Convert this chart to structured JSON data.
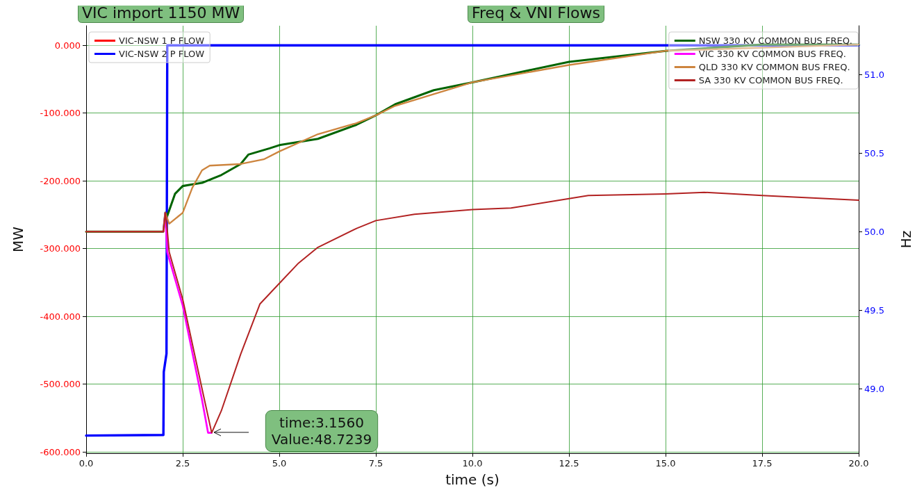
{
  "chart_data": {
    "type": "line",
    "title": "Freq & VNI Flows",
    "subtitle": "VIC import 1150 MW",
    "xlabel": "time (s)",
    "ylabel": "MW",
    "y2label": "Hz",
    "xlim": [
      0,
      20
    ],
    "xticks": [
      {
        "value": 0,
        "label": "0.0"
      },
      {
        "value": 2.5,
        "label": "2.5"
      },
      {
        "value": 5,
        "label": "5.0"
      },
      {
        "value": 7.5,
        "label": "7.5"
      },
      {
        "value": 10,
        "label": "10.0"
      },
      {
        "value": 12.5,
        "label": "12.5"
      },
      {
        "value": 15,
        "label": "15.0"
      },
      {
        "value": 17.5,
        "label": "17.5"
      },
      {
        "value": 20,
        "label": "20.0"
      }
    ],
    "ylim": [
      -602,
      29
    ],
    "yticks": [
      {
        "value": -600,
        "label": "-600.000"
      },
      {
        "value": -500,
        "label": "-500.000"
      },
      {
        "value": -400,
        "label": "-400.000"
      },
      {
        "value": -300,
        "label": "-300.000"
      },
      {
        "value": -200,
        "label": "-200.000"
      },
      {
        "value": -100,
        "label": "-100.000"
      },
      {
        "value": 0,
        "label": "0.000"
      }
    ],
    "y2lim": [
      48.59,
      51.31
    ],
    "y2ticks": [
      {
        "value": 49,
        "label": "49.0"
      },
      {
        "value": 49.5,
        "label": "49.5"
      },
      {
        "value": 50,
        "label": "50.0"
      },
      {
        "value": 50.5,
        "label": "50.5"
      },
      {
        "value": 51,
        "label": "51.0"
      }
    ],
    "grid": true,
    "legend": "top left",
    "series": [
      {
        "name": "VIC-NSW 1 P FLOW",
        "color": "#ff0000"
      },
      {
        "name": "VIC-NSW 2 P FLOW",
        "color": "#0000ff",
        "x": [
          0,
          2.0,
          2.01,
          2.08,
          2.1,
          20
        ],
        "values": [
          -576,
          -575,
          -482,
          -455,
          0,
          0
        ]
      },
      {
        "name": "NSW 330 KV COMMON BUS FREQ.",
        "color": "#006400",
        "axis": "y2",
        "x": [
          0,
          2.0,
          2.05,
          2.1,
          2.3,
          2.5,
          2.75,
          3.0,
          3.5,
          4.0,
          4.2,
          4.75,
          5.0,
          6.0,
          7.0,
          7.5,
          8.0,
          9.0,
          10,
          12.5,
          15,
          17.5,
          20
        ],
        "values": [
          50.0,
          50.0,
          50.12,
          50.1,
          50.24,
          50.29,
          50.3,
          50.31,
          50.36,
          50.43,
          50.49,
          50.53,
          50.55,
          50.59,
          50.68,
          50.74,
          50.81,
          50.9,
          50.95,
          51.08,
          51.15,
          51.19,
          51.19
        ]
      },
      {
        "name": "VIC 330 KV COMMON BUS FREQ.",
        "color": "#ff00ff",
        "axis": "y2",
        "x": [
          2.0,
          2.05,
          2.1,
          2.5,
          3.0,
          3.156,
          3.25
        ],
        "values": [
          50.0,
          50.12,
          49.87,
          49.53,
          48.93,
          48.72,
          48.72
        ]
      },
      {
        "name": "QLD 330 KV COMMON BUS FREQ.",
        "color": "#cd853f",
        "axis": "y2",
        "x": [
          0,
          2.0,
          2.05,
          2.15,
          2.5,
          2.75,
          3.0,
          3.2,
          4.0,
          4.6,
          5.0,
          6.0,
          7.0,
          7.5,
          8.0,
          10,
          12.5,
          15,
          17.5,
          20
        ],
        "values": [
          50.0,
          50.0,
          50.12,
          50.05,
          50.12,
          50.28,
          50.39,
          50.42,
          50.43,
          50.46,
          50.51,
          50.62,
          50.69,
          50.74,
          50.8,
          50.95,
          51.06,
          51.15,
          51.17,
          51.19
        ]
      },
      {
        "name": "SA 330 KV COMMON BUS FREQ.",
        "color": "#b22222",
        "axis": "y2",
        "x": [
          0,
          2.0,
          2.05,
          2.1,
          2.15,
          2.5,
          3.0,
          3.25,
          3.5,
          4.0,
          4.5,
          5.0,
          5.5,
          6.0,
          7.0,
          7.5,
          8.5,
          10,
          11,
          12.5,
          13,
          15,
          16,
          17.5,
          20
        ],
        "values": [
          50.0,
          50.0,
          50.12,
          50.01,
          49.87,
          49.57,
          49.0,
          48.72,
          48.86,
          49.22,
          49.54,
          49.67,
          49.8,
          49.9,
          50.02,
          50.07,
          50.11,
          50.14,
          50.15,
          50.21,
          50.23,
          50.24,
          50.25,
          50.23,
          50.2
        ]
      }
    ],
    "annotations": [
      "time:3.1560\nValue:48.7239"
    ]
  }
}
